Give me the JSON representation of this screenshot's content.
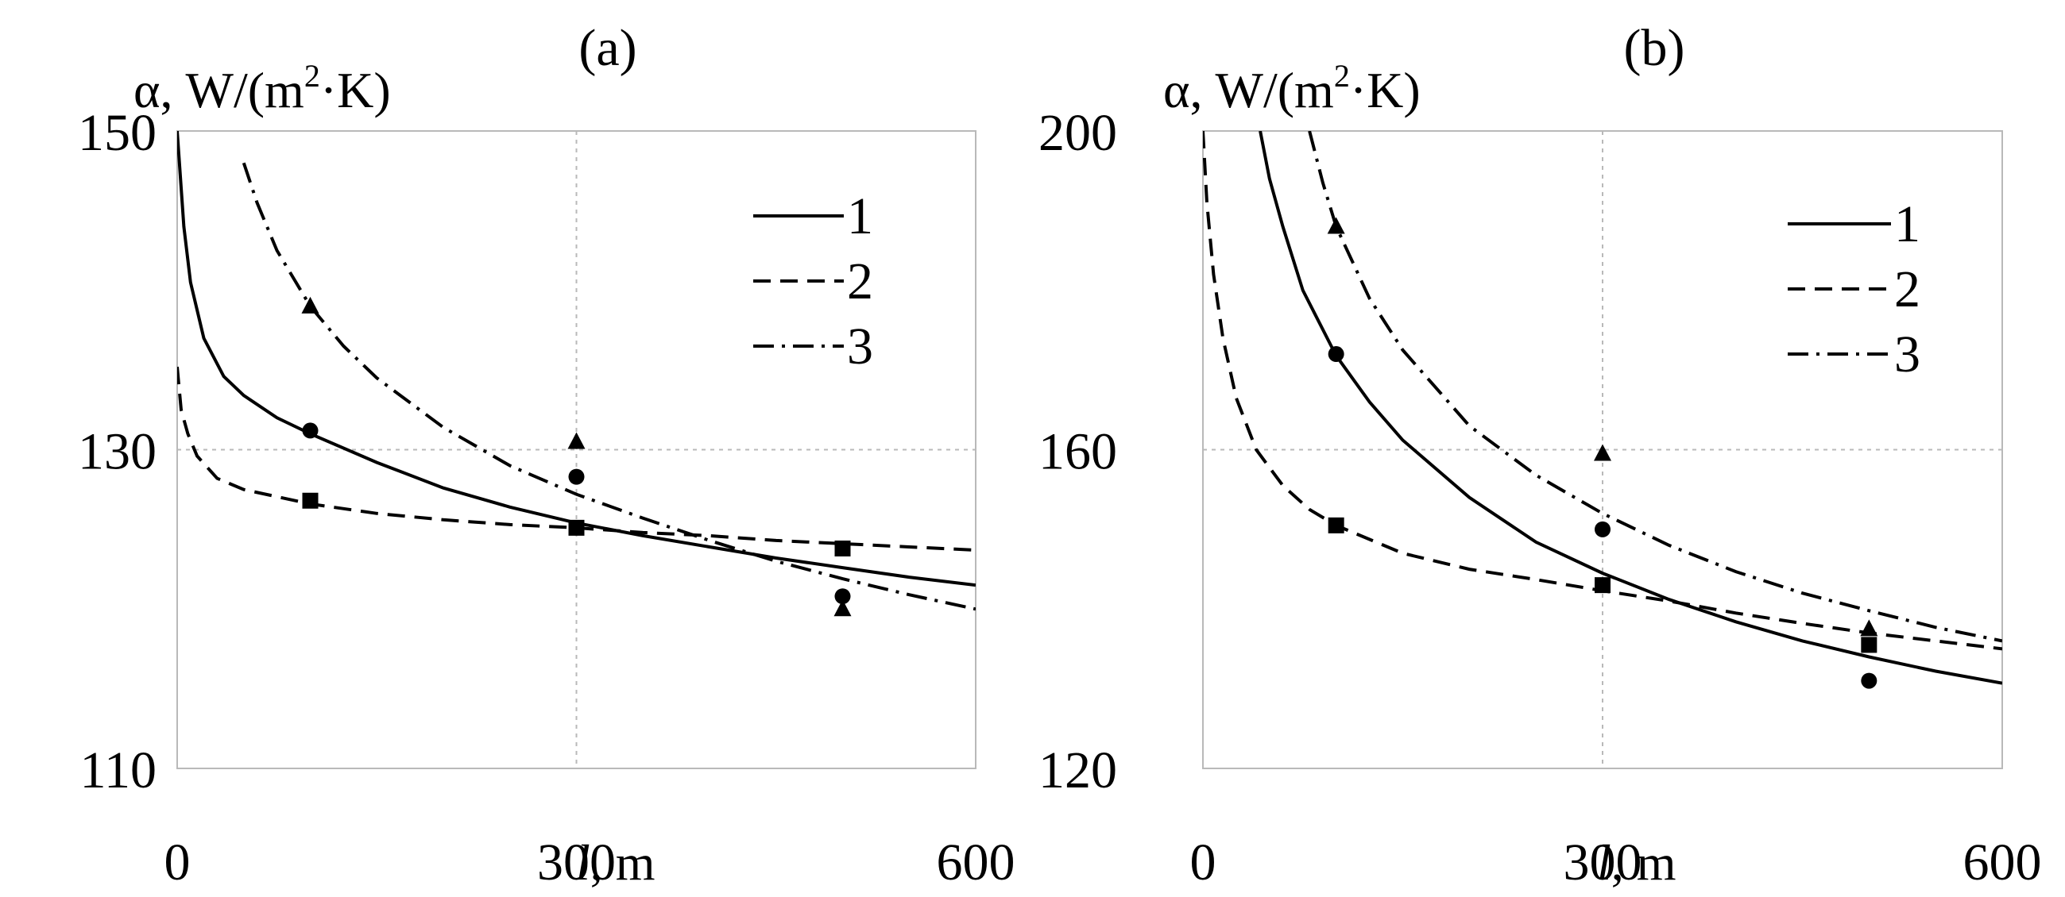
{
  "chart_data": [
    {
      "type": "line",
      "panel_label": "(a)",
      "ylabel_prefix": "α, W/(m",
      "ylabel_sup": "2",
      "ylabel_suffix": "·K)",
      "xlabel_var": "l",
      "xlabel_unit": ", m",
      "xlim": [
        0,
        600
      ],
      "ylim": [
        110,
        150
      ],
      "x_ticks": [
        "0",
        "300",
        "600"
      ],
      "y_ticks": [
        "110",
        "130",
        "150"
      ],
      "grid": true,
      "legend_position": "top-right",
      "series": [
        {
          "name": "1",
          "style": "solid",
          "curve": [
            [
              0,
              150
            ],
            [
              5,
              144
            ],
            [
              10,
              140.5
            ],
            [
              20,
              137
            ],
            [
              35,
              134.6
            ],
            [
              50,
              133.4
            ],
            [
              75,
              132
            ],
            [
              100,
              131
            ],
            [
              150,
              129.2
            ],
            [
              200,
              127.6
            ],
            [
              250,
              126.4
            ],
            [
              300,
              125.4
            ],
            [
              350,
              124.6
            ],
            [
              400,
              123.9
            ],
            [
              450,
              123.2
            ],
            [
              500,
              122.6
            ],
            [
              550,
              122
            ],
            [
              600,
              121.5
            ]
          ],
          "points": [
            [
              100,
              131.2
            ],
            [
              300,
              128.3
            ],
            [
              500,
              120.8
            ]
          ],
          "marker": "circle"
        },
        {
          "name": "2",
          "style": "dashed",
          "curve": [
            [
              0,
              135.2
            ],
            [
              3,
              132.5
            ],
            [
              8,
              131
            ],
            [
              15,
              129.6
            ],
            [
              30,
              128.2
            ],
            [
              50,
              127.5
            ],
            [
              100,
              126.6
            ],
            [
              150,
              126
            ],
            [
              200,
              125.6
            ],
            [
              250,
              125.3
            ],
            [
              300,
              125.1
            ],
            [
              350,
              124.8
            ],
            [
              400,
              124.6
            ],
            [
              450,
              124.3
            ],
            [
              500,
              124.1
            ],
            [
              550,
              123.9
            ],
            [
              600,
              123.7
            ]
          ],
          "points": [
            [
              100,
              126.8
            ],
            [
              300,
              125.1
            ],
            [
              500,
              123.8
            ]
          ],
          "marker": "square"
        },
        {
          "name": "3",
          "style": "dash-dot",
          "curve": [
            [
              50,
              148
            ],
            [
              60,
              145.5
            ],
            [
              75,
              142.5
            ],
            [
              100,
              139
            ],
            [
              125,
              136.5
            ],
            [
              150,
              134.5
            ],
            [
              200,
              131.4
            ],
            [
              250,
              129
            ],
            [
              300,
              127.2
            ],
            [
              350,
              125.7
            ],
            [
              400,
              124.3
            ],
            [
              450,
              123
            ],
            [
              500,
              121.9
            ],
            [
              550,
              120.9
            ],
            [
              600,
              120
            ]
          ],
          "points": [
            [
              100,
              139
            ],
            [
              300,
              130.5
            ],
            [
              500,
              120
            ]
          ],
          "marker": "triangle"
        }
      ]
    },
    {
      "type": "line",
      "panel_label": "(b)",
      "ylabel_prefix": "α, W/(m",
      "ylabel_sup": "2",
      "ylabel_suffix": "·K)",
      "xlabel_var": "l",
      "xlabel_unit": ", m",
      "xlim": [
        0,
        600
      ],
      "ylim": [
        120,
        200
      ],
      "x_ticks": [
        "0",
        "300",
        "600"
      ],
      "y_ticks": [
        "120",
        "160",
        "200"
      ],
      "grid": true,
      "legend_position": "top-right",
      "series": [
        {
          "name": "1",
          "style": "solid",
          "curve": [
            [
              43,
              200
            ],
            [
              50,
              194
            ],
            [
              60,
              188
            ],
            [
              75,
              180
            ],
            [
              100,
              171.8
            ],
            [
              125,
              166
            ],
            [
              150,
              161.2
            ],
            [
              200,
              154
            ],
            [
              250,
              148.4
            ],
            [
              300,
              144.5
            ],
            [
              350,
              141.2
            ],
            [
              400,
              138.4
            ],
            [
              450,
              136
            ],
            [
              500,
              134
            ],
            [
              550,
              132.2
            ],
            [
              600,
              130.7
            ]
          ],
          "points": [
            [
              100,
              172
            ],
            [
              300,
              150
            ],
            [
              500,
              131
            ]
          ],
          "marker": "circle"
        },
        {
          "name": "2",
          "style": "dashed",
          "curve": [
            [
              0,
              200
            ],
            [
              3,
              191
            ],
            [
              8,
              182
            ],
            [
              15,
              174
            ],
            [
              25,
              166.5
            ],
            [
              40,
              160
            ],
            [
              60,
              155.5
            ],
            [
              80,
              152.5
            ],
            [
              100,
              150.5
            ],
            [
              150,
              147
            ],
            [
              200,
              145
            ],
            [
              250,
              143.7
            ],
            [
              300,
              142.3
            ],
            [
              350,
              141
            ],
            [
              400,
              139.5
            ],
            [
              450,
              138.2
            ],
            [
              500,
              137
            ],
            [
              550,
              136
            ],
            [
              600,
              135
            ]
          ],
          "points": [
            [
              100,
              150.5
            ],
            [
              300,
              143
            ],
            [
              500,
              135.5
            ]
          ],
          "marker": "square"
        },
        {
          "name": "3",
          "style": "dash-dot",
          "curve": [
            [
              80,
              200
            ],
            [
              90,
              193.5
            ],
            [
              100,
              188
            ],
            [
              125,
              179
            ],
            [
              150,
              172.5
            ],
            [
              200,
              163
            ],
            [
              250,
              156.8
            ],
            [
              300,
              152
            ],
            [
              350,
              148
            ],
            [
              400,
              144.7
            ],
            [
              450,
              142
            ],
            [
              500,
              139.8
            ],
            [
              550,
              137.7
            ],
            [
              600,
              136
            ]
          ],
          "points": [
            [
              100,
              188
            ],
            [
              300,
              159.5
            ],
            [
              500,
              137.5
            ]
          ],
          "marker": "triangle"
        }
      ]
    }
  ]
}
